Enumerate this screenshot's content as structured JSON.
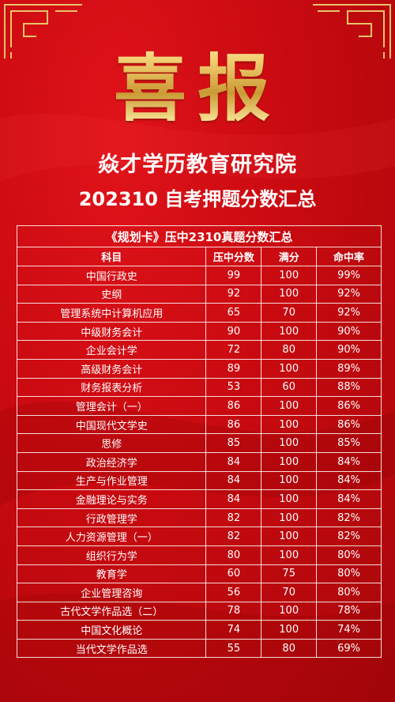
{
  "headline": "喜报",
  "organization": "焱才学历教育研究院",
  "subtitle": "202310 自考押题分数汇总",
  "table": {
    "caption": "《规划卡》压中2310真题分数汇总",
    "headers": [
      "科目",
      "压中分数",
      "满分",
      "命中率"
    ],
    "rows": [
      [
        "中国行政史",
        "99",
        "100",
        "99%"
      ],
      [
        "史纲",
        "92",
        "100",
        "92%"
      ],
      [
        "管理系统中计算机应用",
        "65",
        "70",
        "92%"
      ],
      [
        "中级财务会计",
        "90",
        "100",
        "90%"
      ],
      [
        "企业会计学",
        "72",
        "80",
        "90%"
      ],
      [
        "高级财务会计",
        "89",
        "100",
        "89%"
      ],
      [
        "财务报表分析",
        "53",
        "60",
        "88%"
      ],
      [
        "管理会计（一）",
        "86",
        "100",
        "86%"
      ],
      [
        "中国现代文学史",
        "86",
        "100",
        "86%"
      ],
      [
        "思修",
        "85",
        "100",
        "85%"
      ],
      [
        "政治经济学",
        "84",
        "100",
        "84%"
      ],
      [
        "生产与作业管理",
        "84",
        "100",
        "84%"
      ],
      [
        "金融理论与实务",
        "84",
        "100",
        "84%"
      ],
      [
        "行政管理学",
        "82",
        "100",
        "82%"
      ],
      [
        "人力资源管理（一）",
        "82",
        "100",
        "82%"
      ],
      [
        "组织行为学",
        "80",
        "100",
        "80%"
      ],
      [
        "教育学",
        "60",
        "75",
        "80%"
      ],
      [
        "企业管理咨询",
        "56",
        "70",
        "80%"
      ],
      [
        "古代文学作品选（二）",
        "78",
        "100",
        "78%"
      ],
      [
        "中国文化概论",
        "74",
        "100",
        "74%"
      ],
      [
        "当代文学作品选",
        "55",
        "80",
        "69%"
      ]
    ]
  },
  "colors": {
    "background": "#c80a10",
    "gold": "#e9c063",
    "text": "#ffffff"
  },
  "icons": [
    "gold-corner-ornament-left-icon",
    "gold-corner-ornament-right-icon"
  ]
}
